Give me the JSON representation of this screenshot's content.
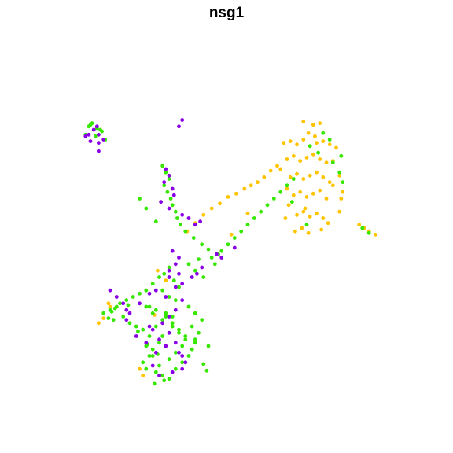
{
  "chart_data": {
    "type": "scatter",
    "title": "nsg1",
    "xlabel": "",
    "ylabel": "",
    "xlim": [
      -12,
      12
    ],
    "ylim": [
      -12,
      12
    ],
    "grid": false,
    "axes_visible": false,
    "series": [
      {
        "color": "#FFC400",
        "x": [
          3.4,
          3.8,
          4.2,
          4.6,
          5.0,
          5.4,
          5.8,
          6.2,
          6.6,
          3.6,
          4.0,
          4.4,
          4.8,
          5.2,
          5.6,
          6.0,
          6.4,
          3.8,
          4.2,
          4.6,
          5.0,
          5.4,
          5.8,
          6.2,
          4.0,
          4.4,
          4.8,
          5.2,
          5.6,
          6.0,
          4.2,
          4.6,
          5.0,
          5.4,
          5.8,
          3.2,
          3.6,
          6.8,
          7.0,
          6.8,
          4.6,
          5.2,
          5.6,
          4.9,
          5.3,
          4.1,
          4.5,
          4.9,
          5.7,
          6.1,
          3.0,
          2.6,
          2.2,
          1.8,
          1.4,
          1.0,
          0.5,
          0.0,
          -0.5,
          -1.0,
          -1.5,
          -2.0,
          -2.5,
          0.2,
          1.2,
          8.0,
          8.6,
          9.0,
          8.3,
          3.7,
          4.7,
          6.4,
          6.9,
          3.5,
          -7.6,
          -7.2,
          -4.3,
          -3.8,
          -7.9,
          -5.4,
          -5.2,
          -4.5,
          -7.3
        ],
        "y": [
          5.2,
          5.3,
          5.1,
          5.4,
          5.0,
          5.2,
          5.3,
          5.1,
          4.9,
          4.2,
          4.4,
          4.1,
          4.3,
          4.5,
          4.2,
          4.0,
          4.1,
          3.1,
          3.3,
          3.0,
          3.2,
          3.4,
          3.1,
          2.8,
          2.0,
          2.2,
          1.9,
          2.1,
          2.3,
          1.8,
          0.8,
          1.0,
          0.7,
          0.9,
          0.6,
          3.6,
          2.4,
          3.2,
          2.2,
          1.0,
          6.5,
          6.3,
          6.4,
          5.8,
          5.6,
          -0.2,
          0.0,
          -0.3,
          -0.1,
          0.3,
          3.8,
          3.5,
          3.1,
          2.8,
          2.6,
          2.4,
          2.1,
          1.9,
          1.5,
          1.2,
          0.8,
          0.3,
          -0.2,
          -0.4,
          0.9,
          0.2,
          -0.2,
          -0.4,
          0.0,
          1.4,
          1.2,
          2.6,
          1.8,
          0.6,
          -5.5,
          -4.8,
          -2.6,
          -3.2,
          -5.8,
          -8.6,
          -9.0,
          -5.3,
          -4.6
        ]
      },
      {
        "color": "#36E800",
        "x": [
          -8.5,
          -8.3,
          -8.0,
          -7.8,
          -8.7,
          -8.1,
          -7.7,
          -8.4,
          -7.5,
          -4.0,
          -3.8,
          -3.6,
          -3.9,
          -3.7,
          -3.5,
          -3.4,
          -3.2,
          -3.1,
          -5.4,
          -5.0,
          -4.4,
          -2.9,
          -2.6,
          -2.1,
          -1.6,
          -1.2,
          -0.6,
          -1.8,
          -2.4,
          -2.0,
          -1.5,
          -3.6,
          -3.9,
          -3.3,
          -3.0,
          -4.2,
          -4.6,
          -5.0,
          -5.4,
          -5.8,
          -4.8,
          -4.4,
          -3.8,
          -3.4,
          -6.2,
          -6.6,
          -6.8,
          -7.2,
          -7.6,
          -7.0,
          -6.4,
          -6.0,
          -5.6,
          -5.2,
          -4.0,
          -4.2,
          -4.6,
          -4.8,
          -5.2,
          -5.0,
          -4.4,
          -4.0,
          -3.6,
          -3.2,
          -2.8,
          -2.4,
          -2.2,
          -2.0,
          -2.6,
          -3.0,
          -3.4,
          -3.8,
          -4.4,
          -4.8,
          -5.0,
          -4.6,
          -4.2,
          -3.6,
          -3.2,
          -2.8,
          -2.6,
          -3.0,
          -3.4,
          -4.0,
          -4.6,
          -5.0,
          -4.0,
          -3.6,
          -3.2,
          -2.4,
          -2.0,
          -1.6,
          -2.2,
          -1.8,
          -2.0,
          -1.2,
          -0.8,
          -1.0,
          -0.4,
          0.0,
          0.4,
          0.8,
          1.2,
          1.6,
          2.0,
          2.4,
          2.8,
          3.2,
          3.6,
          4.0,
          5.0,
          5.5,
          6.4,
          6.8,
          7.0,
          5.8,
          6.2,
          6.9,
          8.2,
          8.6,
          3.9,
          4.8,
          -7.1,
          -6.9,
          -6.1,
          -7.3,
          -5.5,
          -4.9,
          -4.3,
          -1.5,
          -1.3,
          -3.9,
          -4.5
        ],
        "y": [
          6.2,
          6.4,
          6.1,
          6.0,
          5.7,
          5.6,
          5.9,
          6.3,
          5.4,
          3.8,
          3.4,
          3.0,
          2.6,
          2.2,
          1.8,
          1.4,
          1.0,
          0.6,
          1.8,
          1.2,
          0.4,
          0.2,
          -0.2,
          -0.6,
          -1.0,
          -1.3,
          -1.6,
          -1.9,
          -2.2,
          -2.6,
          -3.0,
          -2.4,
          -2.8,
          -3.2,
          -3.6,
          -3.0,
          -3.4,
          -3.8,
          -4.0,
          -4.2,
          -4.8,
          -5.0,
          -5.2,
          -5.4,
          -4.4,
          -4.6,
          -4.8,
          -5.0,
          -5.2,
          -5.6,
          -5.4,
          -5.8,
          -6.0,
          -6.2,
          -6.6,
          -7.0,
          -7.4,
          -7.8,
          -8.2,
          -8.6,
          -8.8,
          -9.0,
          -9.2,
          -8.6,
          -8.2,
          -7.8,
          -7.4,
          -7.0,
          -6.6,
          -6.2,
          -5.8,
          -5.4,
          -6.0,
          -6.6,
          -7.2,
          -7.8,
          -8.4,
          -8.0,
          -7.6,
          -7.2,
          -6.8,
          -6.4,
          -6.0,
          -5.6,
          -5.2,
          -4.8,
          -3.8,
          -4.2,
          -4.4,
          -4.8,
          -5.2,
          -5.6,
          -6.0,
          -6.4,
          -6.8,
          -7.2,
          -2.2,
          -1.8,
          -1.4,
          -1.0,
          -0.6,
          -0.2,
          0.2,
          0.6,
          1.0,
          1.4,
          1.8,
          2.2,
          2.6,
          3.0,
          5.0,
          4.6,
          4.0,
          3.4,
          2.8,
          5.8,
          5.4,
          4.4,
          0.0,
          -0.3,
          1.6,
          0.2,
          -5.1,
          -4.9,
          -4.7,
          -5.5,
          -6.3,
          -7.1,
          -7.7,
          -8.3,
          -8.7,
          -9.3,
          -9.5
        ]
      },
      {
        "color": "#8A00E6",
        "x": [
          -8.5,
          -8.2,
          -7.9,
          -8.7,
          -8.0,
          -7.6,
          -8.4,
          -7.9,
          -3.8,
          -3.6,
          -3.9,
          -3.4,
          -3.3,
          -4.1,
          -3.6,
          -2.8,
          -2.4,
          -2.0,
          -1.7,
          -3.4,
          -3.0,
          -3.2,
          -3.6,
          -4.8,
          -4.4,
          -3.8,
          -3.2,
          -2.8,
          -3.2,
          -3.6,
          -4.0,
          -4.8,
          -5.6,
          -6.2,
          -6.0,
          -5.4,
          -4.6,
          -4.2,
          -3.8,
          -3.0,
          -2.6,
          -2.8,
          -3.4,
          -4.2,
          -4.6,
          -5.0,
          -4.4,
          -3.6,
          -3.2,
          -2.8,
          -3.0,
          -2.8,
          -3.6,
          -2.2,
          -1.9,
          -1.6,
          -7.2,
          -6.8,
          -6.4,
          -6.2,
          -0.7,
          -0.4,
          0.4,
          -2.8,
          -3.0,
          -7.9
        ],
        "y": [
          5.7,
          6.0,
          5.7,
          5.6,
          6.2,
          5.4,
          5.3,
          5.2,
          3.6,
          3.2,
          2.8,
          2.4,
          2.0,
          1.6,
          1.2,
          0.8,
          0.6,
          0.2,
          0.4,
          -1.4,
          -1.8,
          -2.2,
          -2.6,
          -4.0,
          -3.8,
          -4.2,
          -3.6,
          -4.4,
          -5.0,
          -5.4,
          -5.8,
          -6.0,
          -6.6,
          -5.6,
          -5.2,
          -4.6,
          -6.2,
          -6.8,
          -7.2,
          -7.6,
          -8.2,
          -8.6,
          -8.8,
          -9.0,
          -8.4,
          -7.0,
          -7.6,
          -6.4,
          -7.0,
          -7.8,
          -2.8,
          -3.4,
          -3.0,
          -3.0,
          -2.8,
          -2.4,
          -3.8,
          -4.2,
          -4.6,
          -5.0,
          -1.6,
          -1.8,
          -1.2,
          6.6,
          6.2,
          4.7
        ]
      }
    ]
  }
}
